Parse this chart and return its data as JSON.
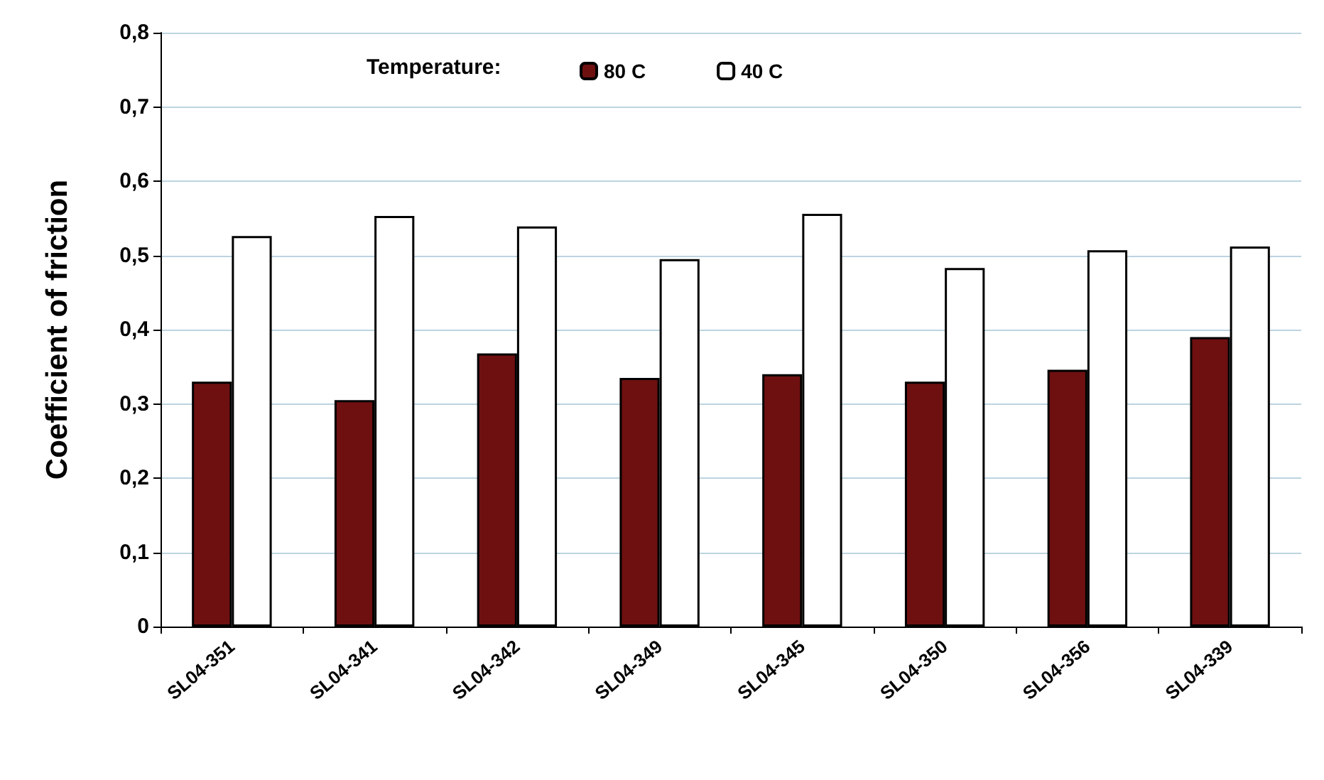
{
  "chart_data": {
    "type": "bar",
    "ylabel": "Coefficient of friction",
    "legend_title": "Temperature:",
    "categories": [
      "SL04-351",
      "SL04-341",
      "SL04-342",
      "SL04-349",
      "SL04-345",
      "SL04-350",
      "SL04-356",
      "SL04-339"
    ],
    "series": [
      {
        "name": "80 C",
        "color": "#6e1010",
        "values": [
          0.33,
          0.305,
          0.368,
          0.335,
          0.34,
          0.33,
          0.346,
          0.39
        ]
      },
      {
        "name": "40 C",
        "color": "#ffffff",
        "values": [
          0.526,
          0.553,
          0.539,
          0.495,
          0.556,
          0.483,
          0.507,
          0.512
        ]
      }
    ],
    "ylim": [
      0,
      0.8
    ],
    "yticks": [
      {
        "value": 0,
        "label": "0"
      },
      {
        "value": 0.1,
        "label": "0,1"
      },
      {
        "value": 0.2,
        "label": "0,2"
      },
      {
        "value": 0.3,
        "label": "0,3"
      },
      {
        "value": 0.4,
        "label": "0,4"
      },
      {
        "value": 0.5,
        "label": "0,5"
      },
      {
        "value": 0.6,
        "label": "0,6"
      },
      {
        "value": 0.7,
        "label": "0,7"
      },
      {
        "value": 0.8,
        "label": "0,8"
      }
    ],
    "grid": "y",
    "legend": "top"
  }
}
